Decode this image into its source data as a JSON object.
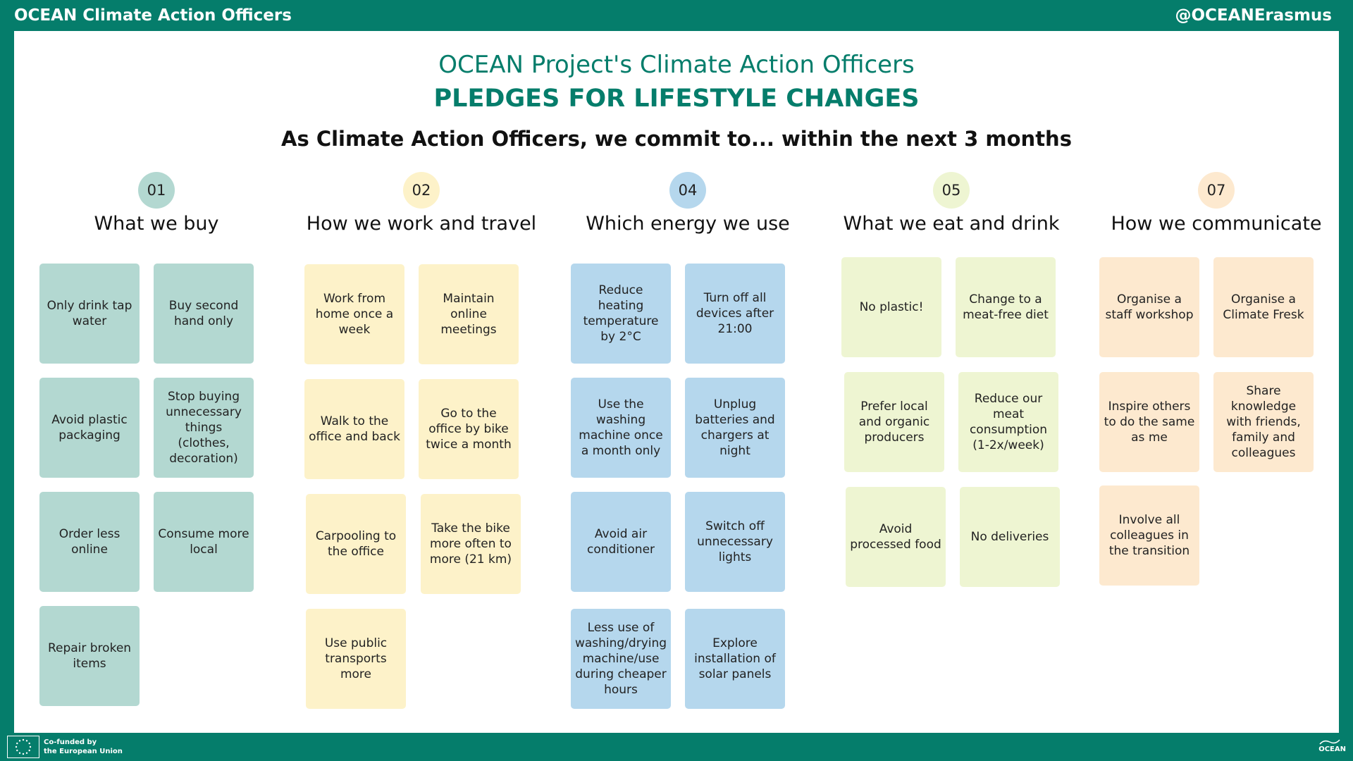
{
  "topbar": {
    "left_title": "OCEAN Climate Action Officers",
    "right_handle": "@OCEANErasmus"
  },
  "header": {
    "title": "OCEAN Project's Climate Action Officers",
    "subtitle": "PLEDGES FOR LIFESTYLE CHANGES",
    "commitment": "As Climate Action Officers, we commit to... within the next 3 months"
  },
  "categories": [
    {
      "number": "01",
      "title": "What we buy",
      "notes": [
        "Only drink tap water",
        "Buy second hand only",
        "Avoid plastic packaging",
        "Stop buying unnecessary things (clothes, decoration)",
        "Order less online",
        "Consume more local",
        "Repair broken items"
      ]
    },
    {
      "number": "02",
      "title": "How we work and travel",
      "notes": [
        "Work from home once a week",
        "Maintain online meetings",
        "Walk to the office and back",
        "Go to the office by bike twice a month",
        "Carpooling to the office",
        "Take the bike more often to more (21 km)",
        "Use public transports more"
      ]
    },
    {
      "number": "04",
      "title": "Which energy we use",
      "notes": [
        "Reduce heating temperature by 2°C",
        "Turn off all devices after 21:00",
        "Use the washing machine once a month only",
        "Unplug batteries and chargers at night",
        "Avoid air conditioner",
        "Switch off unnecessary lights",
        "Less use of washing/drying machine/use during cheaper hours",
        "Explore installation of solar panels"
      ]
    },
    {
      "number": "05",
      "title": "What we eat and drink",
      "notes": [
        "No plastic!",
        "Change to a meat-free diet",
        "Prefer local and organic producers",
        "Reduce our meat consumption (1-2x/week)",
        "Avoid processed food",
        "No deliveries"
      ]
    },
    {
      "number": "07",
      "title": "How we communicate",
      "notes": [
        "Organise a staff workshop",
        "Organise a Climate Fresk",
        "Inspire others to do the same as me",
        "Share knowledge with friends, family and colleagues",
        "Involve all colleagues in the transition"
      ]
    }
  ],
  "footer": {
    "eu_line1": "Co-funded by",
    "eu_line2": "the European Union",
    "logo_text": "OCEAN"
  },
  "colors": {
    "brand_green": "#057d6b",
    "teal_note": "#b3d8d1",
    "yellow_note": "#fdf2c9",
    "blue_note": "#b5d7ed",
    "lime_note": "#eef5d2",
    "peach_note": "#fde9cf"
  },
  "icons": [
    "eu-flag-icon",
    "ocean-logo-icon"
  ]
}
